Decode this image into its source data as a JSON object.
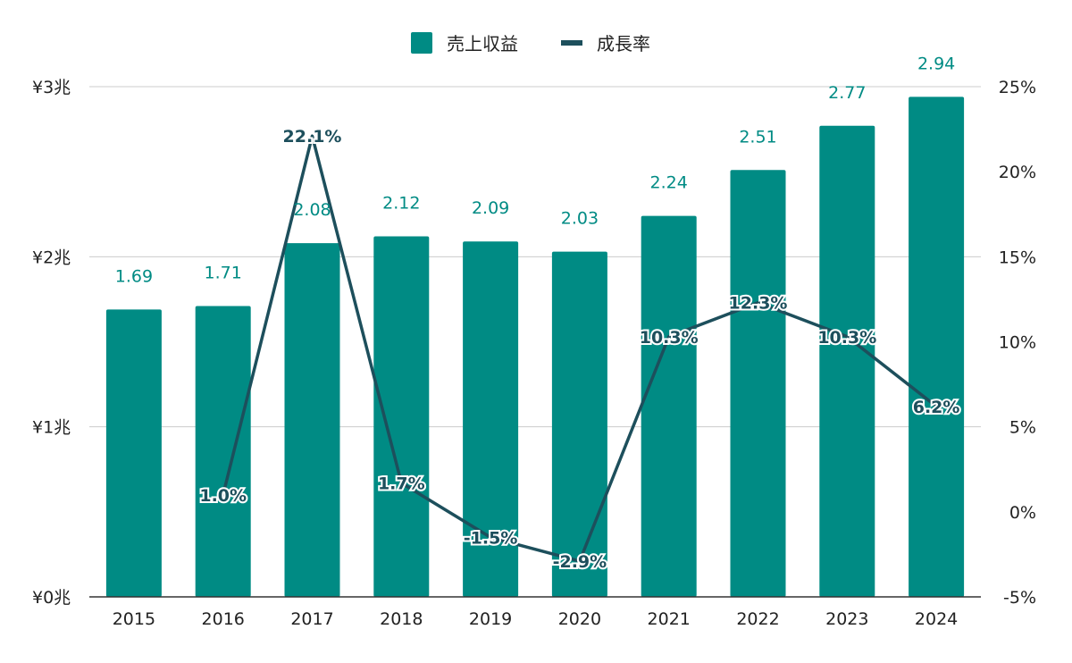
{
  "chart_data": {
    "type": "bar",
    "categories": [
      "2015",
      "2016",
      "2017",
      "2018",
      "2019",
      "2020",
      "2021",
      "2022",
      "2023",
      "2024"
    ],
    "series": [
      {
        "name": "売上収益",
        "type": "bar",
        "axis": "left",
        "color": "#008b84",
        "values": [
          1.69,
          1.71,
          2.08,
          2.12,
          2.09,
          2.03,
          2.24,
          2.51,
          2.77,
          2.94
        ],
        "labels": [
          "1.69",
          "1.71",
          "2.08",
          "2.12",
          "2.09",
          "2.03",
          "2.24",
          "2.51",
          "2.77",
          "2.94"
        ]
      },
      {
        "name": "成長率",
        "type": "line",
        "axis": "right",
        "color": "#1d4f5c",
        "values": [
          null,
          1.0,
          22.1,
          1.7,
          -1.5,
          -2.9,
          10.3,
          12.3,
          10.3,
          6.2
        ],
        "labels": [
          "",
          "1.0%",
          "22.1%",
          "1.7%",
          "-1.5%",
          "-2.9%",
          "10.3%",
          "12.3%",
          "10.3%",
          "6.2%"
        ]
      }
    ],
    "y_left": {
      "ylim": [
        0,
        3
      ],
      "ticks": [
        0,
        1,
        2,
        3
      ],
      "tick_labels": [
        "¥0兆",
        "¥1兆",
        "¥2兆",
        "¥3兆"
      ]
    },
    "y_right": {
      "ylim": [
        -5,
        25
      ],
      "ticks": [
        -5,
        0,
        5,
        10,
        15,
        20,
        25
      ],
      "tick_labels": [
        "-5%",
        "0%",
        "5%",
        "10%",
        "15%",
        "20%",
        "25%"
      ]
    },
    "grid": true,
    "legend_position": "top-center",
    "colors": {
      "grid": "#cccccc",
      "axis": "#333333",
      "bar_label": "#008b84"
    }
  }
}
